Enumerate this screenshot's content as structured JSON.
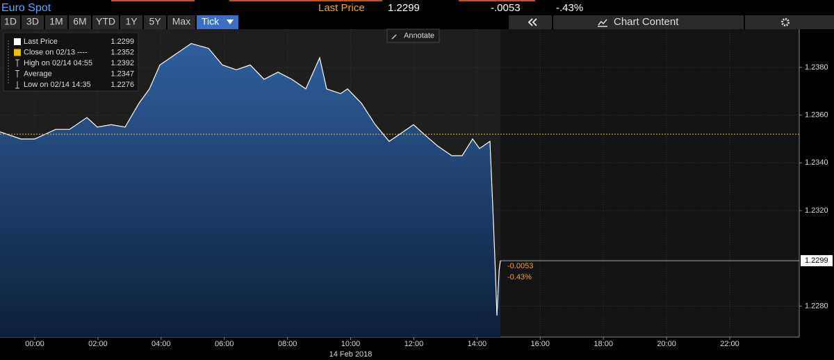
{
  "header": {
    "title": "Euro Spot",
    "last_label": "Last Price",
    "last_value": "1.2299",
    "change": "-.0053",
    "change_pct": "-.43%"
  },
  "toolbar": {
    "ranges": [
      "1D",
      "3D",
      "1M",
      "6M",
      "YTD",
      "1Y",
      "5Y",
      "Max",
      "Tick"
    ],
    "active": 8,
    "chart_content": "Chart Content",
    "annotate": "Annotate"
  },
  "legend": {
    "items": [
      {
        "label": "Last Price",
        "value": "1.2299"
      },
      {
        "label": "Close on 02/13 ----",
        "value": "1.2352"
      },
      {
        "label": "High on 02/14 04:55",
        "value": "1.2392"
      },
      {
        "label": "Average",
        "value": "1.2347"
      },
      {
        "label": "Low on 02/14 14:35",
        "value": "1.2276"
      }
    ]
  },
  "chart_data": {
    "type": "area",
    "x": [
      -1.1,
      -0.44,
      0,
      0.66,
      1.1,
      1.65,
      1.98,
      2.42,
      2.86,
      3.3,
      3.63,
      3.96,
      4.4,
      4.95,
      5.5,
      5.94,
      6.38,
      6.82,
      7.26,
      7.7,
      8.14,
      8.58,
      9.02,
      9.24,
      9.68,
      9.9,
      10.34,
      10.78,
      11.22,
      11.66,
      11.99,
      12.32,
      12.76,
      13.2,
      13.53,
      13.86,
      14.08,
      14.41,
      14.52,
      14.57,
      14.63,
      14.7,
      14.74
    ],
    "values": [
      1.2353,
      1.235,
      1.235,
      1.2354,
      1.2354,
      1.2359,
      1.2355,
      1.2356,
      1.2355,
      1.2365,
      1.2371,
      1.2381,
      1.2385,
      1.239,
      1.2388,
      1.2381,
      1.2379,
      1.2381,
      1.2375,
      1.2378,
      1.2375,
      1.2371,
      1.2384,
      1.2371,
      1.2369,
      1.2371,
      1.2365,
      1.2356,
      1.2349,
      1.2353,
      1.2356,
      1.2352,
      1.2347,
      1.2343,
      1.2343,
      1.235,
      1.2346,
      1.2349,
      1.2315,
      1.2298,
      1.2276,
      1.2295,
      1.2299
    ],
    "color": "#2f5f9e",
    "close_line": 1.2352,
    "last_value": 1.2299,
    "annotations": [
      "-0.0053",
      "-0.43%"
    ],
    "xlabel": "14 Feb 2018",
    "xlim": [
      -1.1,
      24.2
    ],
    "xticks": [
      {
        "value": 0,
        "label": "00:00"
      },
      {
        "value": 2,
        "label": "02:00"
      },
      {
        "value": 4,
        "label": "04:00"
      },
      {
        "value": 6,
        "label": "06:00"
      },
      {
        "value": 8,
        "label": "08:00"
      },
      {
        "value": 10,
        "label": "10:00"
      },
      {
        "value": 12,
        "label": "12:00"
      },
      {
        "value": 14,
        "label": "14:00"
      },
      {
        "value": 16,
        "label": "16:00"
      },
      {
        "value": 18,
        "label": "18:00"
      },
      {
        "value": 20,
        "label": "20:00"
      },
      {
        "value": 22,
        "label": "22:00"
      }
    ],
    "ylim": [
      1.2267,
      1.2396
    ],
    "yticks": [
      {
        "value": 1.228,
        "label": "1.2280"
      },
      {
        "value": 1.232,
        "label": "1.2320"
      },
      {
        "value": 1.234,
        "label": "1.2340"
      },
      {
        "value": 1.236,
        "label": "1.2360"
      },
      {
        "value": 1.238,
        "label": "1.2380"
      }
    ],
    "grid": true
  }
}
